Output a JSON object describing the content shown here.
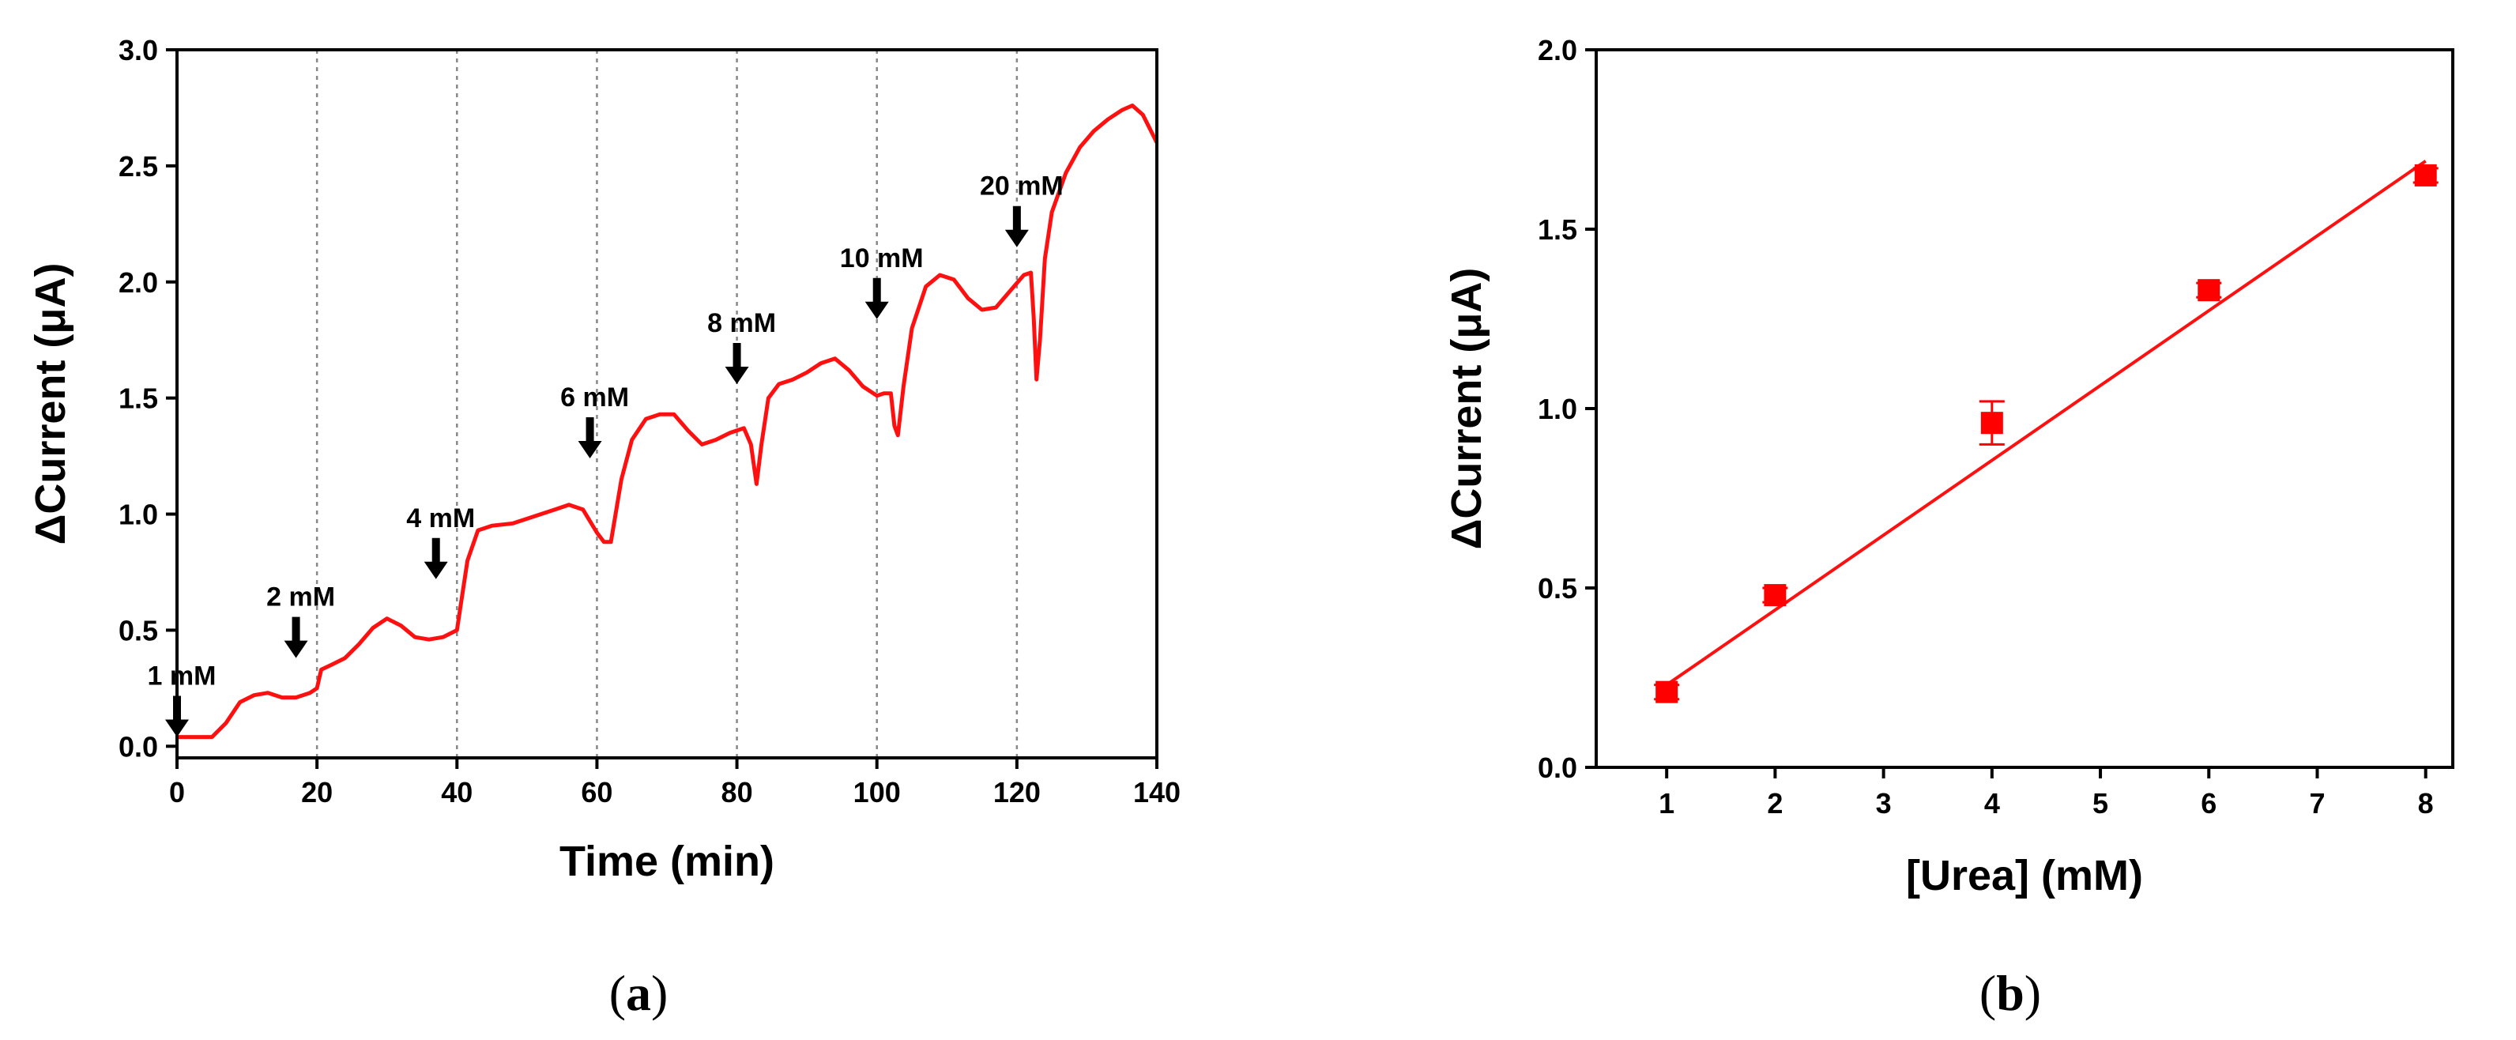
{
  "chart_data": [
    {
      "type": "line",
      "panel": "a",
      "xlabel": "Time (min)",
      "ylabel": "ΔCurrent (μA)",
      "xlim": [
        0,
        140
      ],
      "ylim": [
        -0.05,
        3.0
      ],
      "xticks": [
        0,
        20,
        40,
        60,
        80,
        100,
        120,
        140
      ],
      "yticks": [
        0.0,
        0.5,
        1.0,
        1.5,
        2.0,
        2.5,
        3.0
      ],
      "grid": false,
      "vertical_markers": [
        20,
        40,
        60,
        80,
        100,
        120
      ],
      "annotations": [
        {
          "text": "1 mM",
          "x": 0,
          "y": 0.04
        },
        {
          "text": "2 mM",
          "x": 17,
          "y": 0.38
        },
        {
          "text": "4 mM",
          "x": 37,
          "y": 0.72
        },
        {
          "text": "6 mM",
          "x": 59,
          "y": 1.24
        },
        {
          "text": "8 mM",
          "x": 80,
          "y": 1.56
        },
        {
          "text": "10 mM",
          "x": 100,
          "y": 1.84
        },
        {
          "text": "20 mM",
          "x": 120,
          "y": 2.15
        }
      ],
      "series": [
        {
          "color": "#ff1010",
          "x": [
            0,
            5,
            7,
            9,
            11,
            13,
            15,
            17,
            19,
            20,
            20.6,
            22,
            24,
            26,
            28,
            30,
            32,
            34,
            36,
            38,
            40,
            40.5,
            41.5,
            43,
            45,
            48,
            51,
            54,
            56,
            58,
            60,
            61,
            62,
            63.5,
            65,
            67,
            69,
            71,
            73,
            75,
            77,
            79,
            81,
            82,
            82.8,
            83.5,
            84.5,
            86,
            88,
            90,
            92,
            94,
            96,
            98,
            100,
            101,
            102,
            102.5,
            103,
            103.8,
            105,
            107,
            109,
            111,
            113,
            115,
            117,
            119,
            121,
            122,
            122.4,
            122.8,
            123.3,
            124,
            125,
            127,
            129,
            131,
            133,
            135,
            136.5,
            138,
            140
          ],
          "y": [
            0.04,
            0.04,
            0.1,
            0.19,
            0.22,
            0.23,
            0.21,
            0.21,
            0.23,
            0.25,
            0.33,
            0.35,
            0.38,
            0.44,
            0.51,
            0.55,
            0.52,
            0.47,
            0.46,
            0.47,
            0.5,
            0.6,
            0.8,
            0.93,
            0.95,
            0.96,
            0.99,
            1.02,
            1.04,
            1.02,
            0.92,
            0.88,
            0.88,
            1.15,
            1.32,
            1.41,
            1.43,
            1.43,
            1.36,
            1.3,
            1.32,
            1.35,
            1.37,
            1.3,
            1.13,
            1.3,
            1.5,
            1.56,
            1.58,
            1.61,
            1.65,
            1.67,
            1.62,
            1.55,
            1.51,
            1.52,
            1.52,
            1.38,
            1.34,
            1.55,
            1.8,
            1.98,
            2.03,
            2.01,
            1.93,
            1.88,
            1.89,
            1.96,
            2.03,
            2.04,
            1.85,
            1.58,
            1.75,
            2.1,
            2.3,
            2.47,
            2.58,
            2.65,
            2.7,
            2.74,
            2.76,
            2.72,
            2.6
          ]
        }
      ]
    },
    {
      "type": "scatter",
      "panel": "b",
      "xlabel": "[Urea] (mM)",
      "ylabel": "ΔCurrent (μA)",
      "xlim": [
        0.35,
        8.25
      ],
      "ylim": [
        0.0,
        2.0
      ],
      "xticks": [
        1,
        2,
        3,
        4,
        5,
        6,
        7,
        8
      ],
      "yticks": [
        0.0,
        0.5,
        1.0,
        1.5,
        2.0
      ],
      "grid": false,
      "series": [
        {
          "color": "#ff0000",
          "x": [
            1,
            2,
            4,
            6,
            8
          ],
          "y": [
            0.21,
            0.48,
            0.96,
            1.33,
            1.65
          ],
          "error": [
            0.02,
            0.02,
            0.06,
            0.02,
            0.02
          ]
        }
      ],
      "fit": {
        "x": [
          1,
          8
        ],
        "y": [
          0.23,
          1.69
        ]
      }
    }
  ],
  "captions": {
    "a": {
      "open": "(",
      "letter": "a",
      "close": ")"
    },
    "b": {
      "open": "(",
      "letter": "b",
      "close": ")"
    }
  }
}
